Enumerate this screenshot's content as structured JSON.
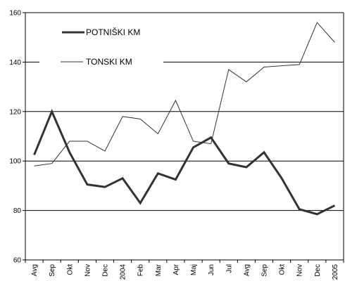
{
  "chart_data": {
    "type": "line",
    "categories": [
      "Avg",
      "Sep",
      "Okt",
      "Nov",
      "Dec",
      "2004",
      "Feb",
      "Mar",
      "Apr",
      "Maj",
      "Jun",
      "Jul",
      "Avg",
      "Sep",
      "Okt",
      "Nov",
      "Dec",
      "2005"
    ],
    "series": [
      {
        "name": "POTNIŠKI KM",
        "values": [
          102.5,
          120,
          103.5,
          90.5,
          89.5,
          93,
          83,
          95,
          92.5,
          105.5,
          109.5,
          99,
          97.5,
          103.5,
          93,
          80.5,
          78.5,
          82
        ],
        "color": "#333333",
        "style": "thick"
      },
      {
        "name": "TONSKI KM",
        "values": [
          98,
          99,
          108,
          108,
          104,
          118,
          117,
          111,
          124.5,
          108,
          107,
          137,
          132,
          138,
          138.5,
          139,
          156,
          148
        ],
        "color": "#333333",
        "style": "thin"
      }
    ],
    "ylim": [
      60,
      160
    ],
    "yticks": [
      60,
      80,
      100,
      120,
      140,
      160
    ],
    "grid": "horizontal",
    "legend_position": "top-left"
  }
}
